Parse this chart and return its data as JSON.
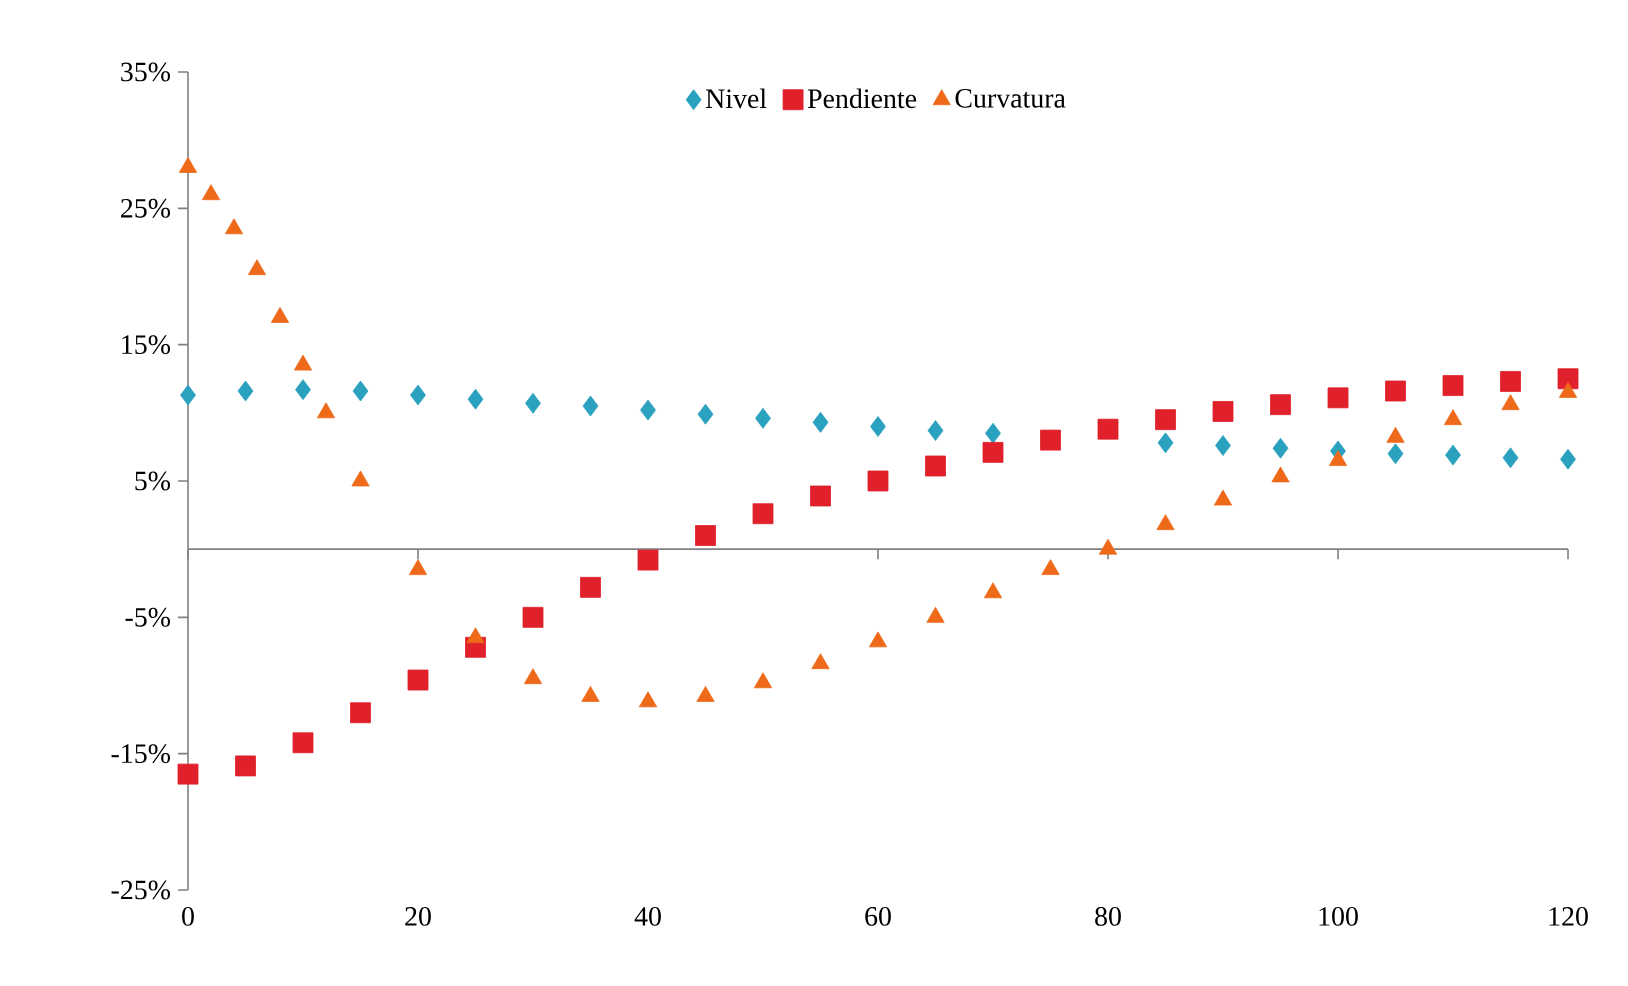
{
  "chart_data": {
    "type": "scatter",
    "legend": "top",
    "xlim": [
      0,
      120
    ],
    "ylim": [
      -25,
      35
    ],
    "xticks": [
      0,
      20,
      40,
      60,
      80,
      100,
      120
    ],
    "yticks": [
      {
        "value": -25,
        "label": "-25%"
      },
      {
        "value": -15,
        "label": "-15%"
      },
      {
        "value": -5,
        "label": "-5%"
      },
      {
        "value": 5,
        "label": "5%"
      },
      {
        "value": 15,
        "label": "15%"
      },
      {
        "value": 25,
        "label": "25%"
      },
      {
        "value": 35,
        "label": "35%"
      }
    ],
    "series": [
      {
        "name": "Nivel",
        "color": "#2aa1bf",
        "marker": "diamond",
        "x": [
          0,
          5,
          10,
          15,
          20,
          25,
          30,
          35,
          40,
          45,
          50,
          55,
          60,
          65,
          70,
          85,
          90,
          95,
          100,
          105,
          110,
          115,
          120
        ],
        "values": [
          11.3,
          11.6,
          11.7,
          11.6,
          11.3,
          11.0,
          10.7,
          10.5,
          10.2,
          9.9,
          9.6,
          9.3,
          9.0,
          8.7,
          8.5,
          7.8,
          7.6,
          7.4,
          7.2,
          7.0,
          6.9,
          6.7,
          6.6
        ]
      },
      {
        "name": "Pendiente",
        "color": "#e0202a",
        "marker": "square",
        "x": [
          0,
          5,
          10,
          15,
          20,
          25,
          30,
          35,
          40,
          45,
          50,
          55,
          60,
          65,
          70,
          75,
          80,
          85,
          90,
          95,
          100,
          105,
          110,
          115,
          120
        ],
        "values": [
          -16.5,
          -15.9,
          -14.2,
          -12.0,
          -9.6,
          -7.2,
          -5.0,
          -2.8,
          -0.8,
          1.0,
          2.6,
          3.9,
          5.0,
          6.1,
          7.1,
          8.0,
          8.8,
          9.5,
          10.1,
          10.6,
          11.1,
          11.6,
          12.0,
          12.3,
          12.5
        ]
      },
      {
        "name": "Curvatura",
        "color": "#ee6a1a",
        "marker": "triangle",
        "x": [
          0,
          2,
          4,
          6,
          8,
          10,
          12,
          15,
          20,
          25,
          30,
          35,
          40,
          45,
          50,
          55,
          60,
          65,
          70,
          75,
          80,
          85,
          90,
          95,
          100,
          105,
          110,
          115,
          120
        ],
        "values": [
          28.0,
          26.0,
          23.5,
          20.5,
          17.0,
          13.5,
          10.0,
          5.0,
          -1.5,
          -6.5,
          -9.5,
          -10.8,
          -11.2,
          -10.8,
          -9.8,
          -8.4,
          -6.8,
          -5.0,
          -3.2,
          -1.5,
          0.0,
          1.8,
          3.6,
          5.3,
          6.5,
          8.2,
          9.5,
          10.6,
          11.5
        ]
      }
    ]
  }
}
